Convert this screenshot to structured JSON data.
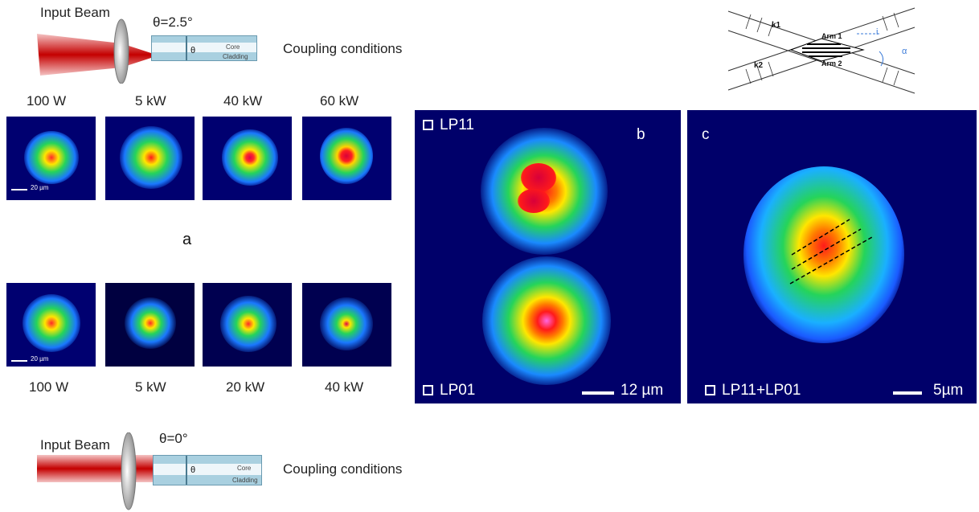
{
  "top_setup": {
    "input_label": "Input Beam",
    "angle": "θ=2.5°",
    "theta": "θ",
    "core": "Core",
    "cladding": "Cladding",
    "caption": "Coupling conditions"
  },
  "bottom_setup": {
    "input_label": "Input Beam",
    "angle": "θ=0°",
    "theta": "θ",
    "core": "Core",
    "cladding": "Cladding",
    "caption": "Coupling conditions"
  },
  "row1": {
    "powers": [
      "100 W",
      "5 kW",
      "40 kW",
      "60 kW"
    ],
    "scale": "20 µm"
  },
  "row2": {
    "powers": [
      "100 W",
      "5 kW",
      "20 kW",
      "40 kW"
    ],
    "scale": "20 µm"
  },
  "panel_a_label": "a",
  "panel_b": {
    "letter": "b",
    "mode_top": "LP11",
    "mode_bottom": "LP01",
    "scale": "12 µm"
  },
  "panel_c": {
    "letter": "c",
    "mode": "LP11+LP01",
    "scale": "5µm"
  },
  "diagram": {
    "k1": "k1",
    "k2": "k2",
    "arm1": "Arm 1",
    "arm2": "Arm 2",
    "i": "i",
    "alpha": "α"
  }
}
